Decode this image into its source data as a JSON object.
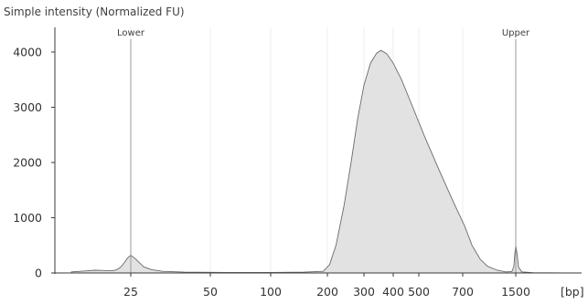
{
  "chart_data": {
    "type": "area",
    "title": "Simple intensity (Normalized FU)",
    "x_unit_label": "[bp]",
    "x_scale": "log",
    "y_ticks": [
      0,
      1000,
      2000,
      3000,
      4000
    ],
    "x_ticks": [
      {
        "value": 25,
        "label": "25"
      },
      {
        "value": 50,
        "label": "50"
      },
      {
        "value": 100,
        "label": "100"
      },
      {
        "value": 200,
        "label": "200"
      },
      {
        "value": 300,
        "label": "300"
      },
      {
        "value": 400,
        "label": "400"
      },
      {
        "value": 500,
        "label": "500"
      },
      {
        "value": 700,
        "label": "700"
      },
      {
        "value": 1500,
        "label": "1500"
      }
    ],
    "ylim": [
      0,
      4400
    ],
    "xlim": [
      10,
      3000
    ],
    "grid": "vertical",
    "markers": [
      {
        "name": "Lower",
        "x": 25
      },
      {
        "name": "Upper",
        "x": 1500
      }
    ],
    "series": [
      {
        "points": [
          [
            12,
            20
          ],
          [
            14,
            35
          ],
          [
            16,
            50
          ],
          [
            18,
            45
          ],
          [
            20,
            40
          ],
          [
            21,
            60
          ],
          [
            22,
            100
          ],
          [
            23,
            180
          ],
          [
            24,
            270
          ],
          [
            25,
            320
          ],
          [
            26,
            260
          ],
          [
            27,
            180
          ],
          [
            28,
            110
          ],
          [
            30,
            60
          ],
          [
            33,
            30
          ],
          [
            40,
            15
          ],
          [
            60,
            10
          ],
          [
            100,
            10
          ],
          [
            150,
            15
          ],
          [
            190,
            30
          ],
          [
            205,
            150
          ],
          [
            220,
            500
          ],
          [
            240,
            1200
          ],
          [
            260,
            2000
          ],
          [
            280,
            2800
          ],
          [
            300,
            3400
          ],
          [
            320,
            3800
          ],
          [
            340,
            3980
          ],
          [
            355,
            4030
          ],
          [
            375,
            3970
          ],
          [
            400,
            3800
          ],
          [
            430,
            3500
          ],
          [
            470,
            3050
          ],
          [
            520,
            2500
          ],
          [
            580,
            1900
          ],
          [
            650,
            1300
          ],
          [
            720,
            850
          ],
          [
            800,
            500
          ],
          [
            900,
            250
          ],
          [
            1000,
            120
          ],
          [
            1150,
            50
          ],
          [
            1300,
            20
          ],
          [
            1420,
            25
          ],
          [
            1460,
            120
          ],
          [
            1480,
            350
          ],
          [
            1500,
            500
          ],
          [
            1520,
            350
          ],
          [
            1545,
            100
          ],
          [
            1600,
            20
          ],
          [
            1800,
            5
          ],
          [
            2500,
            0
          ]
        ]
      }
    ]
  }
}
